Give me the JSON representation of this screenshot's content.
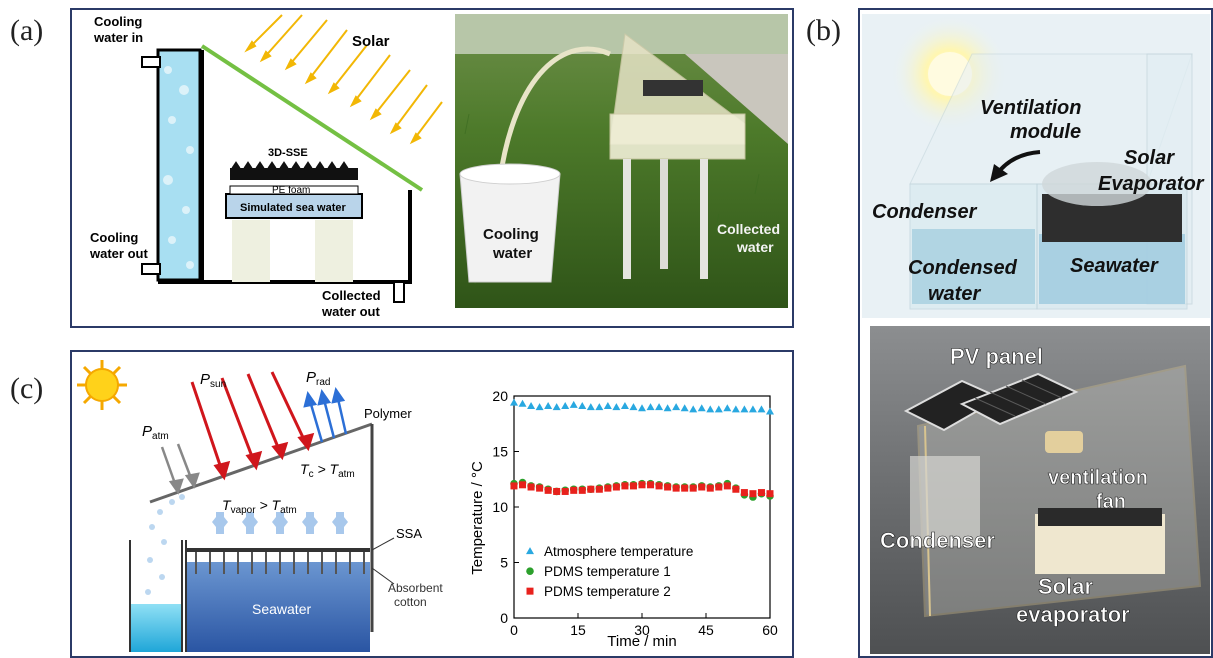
{
  "panels": {
    "a": "(a)",
    "b": "(b)",
    "c": "(c)"
  },
  "schematic_a": {
    "cooling_water_in_1": "Cooling",
    "cooling_water_in_2": "water in",
    "solar": "Solar",
    "sse": "3D-SSE",
    "pe_foam": "PE foam",
    "sea_water": "Simulated sea water",
    "cooling_water_out_1": "Cooling",
    "cooling_water_out_2": "water out",
    "collected_out_1": "Collected",
    "collected_out_2": "water out"
  },
  "photo_a": {
    "cooling_water_1": "Cooling",
    "cooling_water_2": "water",
    "collected_water_1": "Collected",
    "collected_water_2": "water"
  },
  "render_b": {
    "ventilation_1": "Ventilation",
    "ventilation_2": "module",
    "solar_evap_1": "Solar",
    "solar_evap_2": "Evaporator",
    "condenser": "Condenser",
    "condensed_1": "Condensed",
    "condensed_2": "water",
    "seawater": "Seawater"
  },
  "photo_b": {
    "pv_panel": "PV panel",
    "ventilation_fan_1": "ventilation",
    "ventilation_fan_2": "fan",
    "condenser": "Condenser",
    "solar_evap_1": "Solar",
    "solar_evap_2": "evaporator"
  },
  "schematic_c": {
    "p_sun": "P",
    "p_sun_sub": "sun",
    "p_rad": "P",
    "p_rad_sub": "rad",
    "p_atm": "P",
    "p_atm_sub": "atm",
    "polymer": "Polymer",
    "tc": "T",
    "tc_sub": "c",
    "gt1": " > T",
    "tatm_sub1": "atm",
    "tvapor": "T",
    "tvapor_sub": "vapor",
    "gt2": " > T",
    "tatm_sub2": "atm",
    "ssa": "SSA",
    "absorbent_1": "Absorbent",
    "absorbent_2": "cotton",
    "seawater": "Seawater"
  },
  "chart_data": {
    "type": "scatter",
    "xlabel": "Time / min",
    "ylabel": "Temperature / °C",
    "xlim": [
      0,
      60
    ],
    "ylim": [
      0,
      20
    ],
    "xticks": [
      0,
      15,
      30,
      45,
      60
    ],
    "yticks": [
      0,
      5,
      10,
      15,
      20
    ],
    "legend_position": "lower-center",
    "series": [
      {
        "name": "Atmosphere temperature",
        "marker": "triangle",
        "color": "#29a8e0",
        "x": [
          0,
          2,
          4,
          6,
          8,
          10,
          12,
          14,
          16,
          18,
          20,
          22,
          24,
          26,
          28,
          30,
          32,
          34,
          36,
          38,
          40,
          42,
          44,
          46,
          48,
          50,
          52,
          54,
          56,
          58,
          60
        ],
        "y": [
          19.4,
          19.3,
          19.1,
          19.0,
          19.1,
          19.0,
          19.1,
          19.2,
          19.1,
          19.0,
          19.0,
          19.1,
          19.0,
          19.1,
          19.0,
          18.9,
          19.0,
          19.0,
          18.9,
          19.0,
          18.9,
          18.8,
          18.9,
          18.8,
          18.8,
          18.9,
          18.8,
          18.8,
          18.8,
          18.8,
          18.6
        ]
      },
      {
        "name": "PDMS temperature 1",
        "marker": "circle",
        "color": "#2ca02c",
        "x": [
          0,
          2,
          4,
          6,
          8,
          10,
          12,
          14,
          16,
          18,
          20,
          22,
          24,
          26,
          28,
          30,
          32,
          34,
          36,
          38,
          40,
          42,
          44,
          46,
          48,
          50,
          52,
          54,
          56,
          58,
          60
        ],
        "y": [
          12.1,
          12.2,
          11.9,
          11.8,
          11.6,
          11.4,
          11.5,
          11.6,
          11.6,
          11.6,
          11.7,
          11.8,
          11.9,
          12.0,
          12.0,
          12.1,
          12.1,
          12.0,
          11.9,
          11.8,
          11.8,
          11.8,
          11.9,
          11.8,
          11.9,
          12.1,
          11.7,
          11.1,
          10.9,
          11.2,
          11.0
        ]
      },
      {
        "name": "PDMS temperature 2",
        "marker": "square",
        "color": "#e8211c",
        "x": [
          0,
          2,
          4,
          6,
          8,
          10,
          12,
          14,
          16,
          18,
          20,
          22,
          24,
          26,
          28,
          30,
          32,
          34,
          36,
          38,
          40,
          42,
          44,
          46,
          48,
          50,
          52,
          54,
          56,
          58,
          60
        ],
        "y": [
          11.9,
          12.0,
          11.8,
          11.7,
          11.5,
          11.4,
          11.4,
          11.5,
          11.5,
          11.6,
          11.6,
          11.7,
          11.8,
          11.9,
          11.9,
          12.0,
          12.0,
          11.9,
          11.8,
          11.7,
          11.7,
          11.7,
          11.8,
          11.7,
          11.8,
          11.9,
          11.6,
          11.3,
          11.2,
          11.3,
          11.2
        ]
      }
    ]
  }
}
